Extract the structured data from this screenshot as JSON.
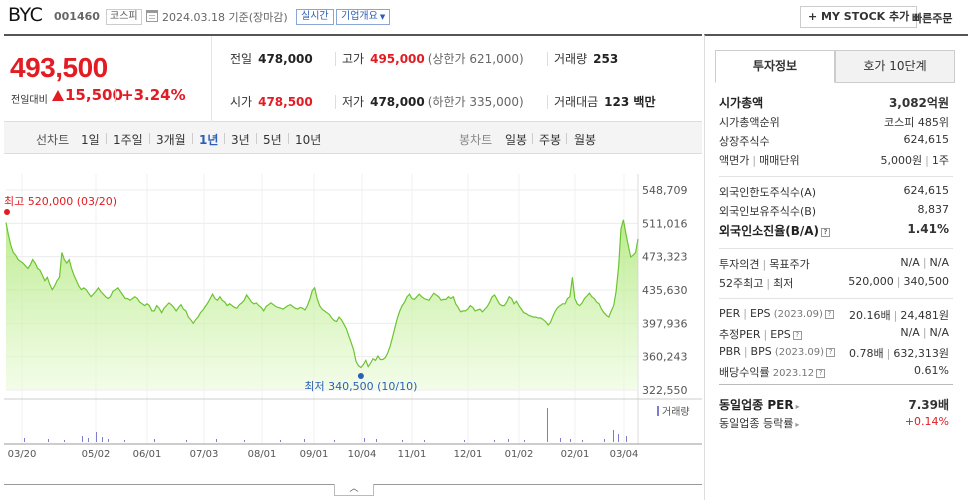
{
  "header": {
    "stock_name": "BYC",
    "stock_code": "001460",
    "market": "코스피",
    "date_text": "2024.03.18 기준(장마감)",
    "realtime_label": "실시간",
    "overview_label": "기업개요",
    "mystock_label": "MY STOCK 추가",
    "quickorder_label": "빠른주문",
    "icons": [
      "calendar-icon",
      "plus-icon",
      "chevron-down-icon"
    ]
  },
  "summary": {
    "current_price": "493,500",
    "change_label": "전일대비",
    "change_value": "15,500",
    "change_rate": "+3.24%",
    "stats": {
      "prev_close": {
        "label": "전일",
        "value": "478,000"
      },
      "high": {
        "label": "고가",
        "value": "495,000",
        "sub": "(상한가 621,000)"
      },
      "volume": {
        "label": "거래량",
        "value": "253"
      },
      "open": {
        "label": "시가",
        "value": "478,500"
      },
      "low": {
        "label": "저가",
        "value": "478,000",
        "sub": "(하한가 335,000)"
      },
      "amount": {
        "label": "거래대금",
        "value": "123 백만"
      }
    },
    "colors": {
      "up": "#e31b23",
      "link": "#2d5fb8"
    }
  },
  "period_tabs": {
    "line_head": "선차트",
    "line": [
      "1일",
      "1주일",
      "3개월",
      "1년",
      "3년",
      "5년",
      "10년"
    ],
    "active": "1년",
    "candle_head": "봉차트",
    "candle": [
      "일봉",
      "주봉",
      "월봉"
    ]
  },
  "chart_data": {
    "type": "area",
    "y_ticks": [
      "548,709",
      "511,016",
      "473,323",
      "435,630",
      "397,936",
      "360,243",
      "322,550"
    ],
    "ylim": [
      322550,
      548709
    ],
    "x_ticks": [
      "03/20",
      "05/02",
      "06/01",
      "07/03",
      "08/01",
      "09/01",
      "10/04",
      "11/01",
      "12/01",
      "01/02",
      "02/01",
      "03/04"
    ],
    "annotations": {
      "high": {
        "label": "최고",
        "value": "520,000",
        "date": "(03/20)"
      },
      "low": {
        "label": "최저",
        "value": "340,500",
        "date": "(10/10)"
      }
    },
    "volume_label": "거래량",
    "series": [
      {
        "values": [
          512000,
          498000,
          486000,
          478000,
          475000,
          470000,
          468000,
          466000,
          463000,
          460000,
          464000,
          470000,
          466000,
          460000,
          458000,
          452000,
          446000,
          450000,
          442000,
          436000,
          440000,
          446000,
          450000,
          478000,
          470000,
          466000,
          470000,
          460000,
          452000,
          446000,
          440000,
          436000,
          438000,
          436000,
          432000,
          428000,
          431000,
          434000,
          438000,
          434000,
          431000,
          428000,
          426000,
          428000,
          434000,
          436000,
          438000,
          434000,
          430000,
          426000,
          426000,
          424000,
          426000,
          428000,
          426000,
          422000,
          420000,
          418000,
          420000,
          418000,
          412000,
          412000,
          418000,
          415000,
          410000,
          415000,
          418000,
          421000,
          419000,
          416000,
          412000,
          416000,
          419000,
          414000,
          412000,
          405000,
          402000,
          398000,
          402000,
          405000,
          410000,
          413000,
          417000,
          421000,
          426000,
          431000,
          426000,
          424000,
          428000,
          424000,
          422000,
          418000,
          420000,
          418000,
          416000,
          415000,
          419000,
          421000,
          424000,
          430000,
          426000,
          422000,
          420000,
          421000,
          418000,
          416000,
          412000,
          417000,
          419000,
          421000,
          419000,
          417000,
          416000,
          415000,
          414000,
          416000,
          418000,
          419000,
          417000,
          415000,
          414000,
          416000,
          415000,
          413000,
          418000,
          425000,
          435000,
          438000,
          426000,
          418000,
          414000,
          412000,
          410000,
          408000,
          404000,
          401000,
          400000,
          405000,
          402000,
          397000,
          392000,
          384000,
          376000,
          368000,
          355000,
          350000,
          348000,
          351000,
          356000,
          349000,
          353000,
          358000,
          356000,
          361000,
          357000,
          357000,
          359000,
          364000,
          372000,
          382000,
          393000,
          404000,
          412000,
          418000,
          422000,
          428000,
          431000,
          426000,
          425000,
          428000,
          431000,
          428000,
          426000,
          425000,
          424000,
          428000,
          432000,
          430000,
          428000,
          424000,
          425000,
          425000,
          428000,
          426000,
          428000,
          420000,
          416000,
          411000,
          412000,
          412000,
          414000,
          418000,
          416000,
          412000,
          413000,
          414000,
          411000,
          414000,
          417000,
          422000,
          428000,
          430000,
          425000,
          420000,
          418000,
          418000,
          422000,
          428000,
          426000,
          420000,
          423000,
          418000,
          414000,
          410000,
          409000,
          407000,
          406000,
          405000,
          405000,
          404000,
          404000,
          402000,
          400000,
          396000,
          399000,
          406000,
          412000,
          416000,
          418000,
          420000,
          420000,
          426000,
          428000,
          450000,
          426000,
          420000,
          418000,
          421000,
          426000,
          429000,
          432000,
          428000,
          426000,
          422000,
          420000,
          414000,
          410000,
          407000,
          405000,
          412000,
          418000,
          434000,
          462000,
          505000,
          515000,
          500000,
          486000,
          473000,
          475000,
          478000,
          493500
        ]
      }
    ],
    "volume_ref": "248"
  },
  "side_panel": {
    "tabs": [
      "투자정보",
      "호가 10단계"
    ],
    "active_tab": "투자정보",
    "rows_a": [
      {
        "k": "시가총액",
        "v": "3,082억원",
        "bold": true
      },
      {
        "k": "시가총액순위",
        "v": "코스피 485위"
      },
      {
        "k": "상장주식수",
        "v": "624,615"
      },
      {
        "k": "액면가",
        "k2": "매매단위",
        "v": "5,000원",
        "v2": "1주"
      }
    ],
    "rows_b": [
      {
        "k": "외국인한도주식수(A)",
        "v": "624,615"
      },
      {
        "k": "외국인보유주식수(B)",
        "v": "8,837"
      },
      {
        "k": "외국인소진율(B/A)",
        "v": "1.41%",
        "bold": true
      }
    ],
    "rows_c": [
      {
        "k": "투자의견",
        "k2": "목표주가",
        "v": "N/A",
        "v2": "N/A"
      },
      {
        "k": "52주최고",
        "k2": "최저",
        "v": "520,000",
        "v2": "340,500"
      }
    ],
    "rows_d": [
      {
        "k": "PER",
        "k2": "EPS",
        "yr": "(2023.09)",
        "v": "20.16배",
        "v2": "24,481원"
      },
      {
        "k": "추정PER",
        "k2": "EPS",
        "v": "N/A",
        "v2": "N/A"
      },
      {
        "k": "PBR",
        "k2": "BPS",
        "yr": "(2023.09)",
        "v": "0.78배",
        "v2": "632,313원"
      },
      {
        "k": "배당수익률",
        "yr": "2023.12",
        "v": "0.61%"
      }
    ],
    "rows_e": [
      {
        "k": "동일업종 PER",
        "v": "7.39배",
        "bold": true
      },
      {
        "k": "동일업종 등락률",
        "v": "+0.14%",
        "red": true
      }
    ]
  }
}
